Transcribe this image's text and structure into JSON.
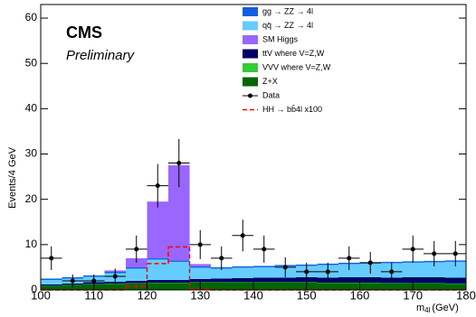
{
  "chart_data": {
    "type": "stacked_histogram",
    "cms_label": "CMS",
    "status_label": "Preliminary",
    "y_label": "Events/4 GeV",
    "x_label_main": "m",
    "x_label_sub": "4l",
    "x_label_unit": "(GeV)",
    "bins": [
      100,
      104,
      108,
      112,
      116,
      120,
      124,
      128,
      132,
      136,
      140,
      144,
      148,
      152,
      156,
      160,
      164,
      168,
      172,
      176,
      180
    ],
    "xlim": [
      100,
      180
    ],
    "ylim": [
      0,
      63
    ],
    "xticks": [
      100,
      110,
      120,
      130,
      140,
      150,
      160,
      170,
      180
    ],
    "yticks": [
      0,
      10,
      20,
      30,
      40,
      50,
      60
    ],
    "series": [
      {
        "name": "Z+X",
        "color": "#006600",
        "values": [
          0.8,
          1.0,
          1.2,
          1.3,
          1.4,
          1.5,
          1.5,
          1.6,
          1.6,
          1.6,
          1.6,
          1.6,
          1.6,
          1.5,
          1.5,
          1.5,
          1.4,
          1.4,
          1.4,
          1.3
        ]
      },
      {
        "name": "VVV where V=Z,W",
        "color": "#33cc33",
        "values": [
          0.1,
          0.1,
          0.1,
          0.1,
          0.1,
          0.1,
          0.1,
          0.1,
          0.1,
          0.1,
          0.1,
          0.1,
          0.1,
          0.1,
          0.1,
          0.1,
          0.1,
          0.1,
          0.1,
          0.1
        ]
      },
      {
        "name": "ttV where V=Z,W",
        "color": "#000066",
        "values": [
          0.3,
          0.3,
          0.4,
          0.4,
          0.5,
          0.6,
          0.6,
          0.7,
          0.8,
          0.9,
          1.0,
          1.0,
          1.1,
          1.1,
          1.2,
          1.2,
          1.2,
          1.3,
          1.3,
          1.3
        ]
      },
      {
        "name": "qq̄ → ZZ → 4l",
        "color": "#66ccff",
        "values": [
          1.0,
          1.1,
          1.2,
          1.9,
          2.7,
          4.5,
          4.0,
          2.5,
          2.2,
          2.3,
          2.3,
          2.5,
          2.5,
          2.8,
          2.9,
          3.0,
          3.2,
          3.2,
          3.3,
          3.5
        ]
      },
      {
        "name": "gg → ZZ → 4l",
        "color": "#1060e0",
        "values": [
          0.3,
          0.3,
          0.3,
          0.3,
          0.3,
          0.3,
          0.3,
          0.3,
          0.3,
          0.3,
          0.3,
          0.3,
          0.3,
          0.3,
          0.3,
          0.3,
          0.3,
          0.3,
          0.3,
          0.3
        ]
      },
      {
        "name": "SM Higgs",
        "color": "#9966ff",
        "values": [
          0,
          0,
          0,
          0.3,
          2.0,
          12.5,
          21.0,
          0.5,
          0,
          0,
          0,
          0,
          0,
          0,
          0,
          0,
          0,
          0,
          0,
          0
        ]
      }
    ],
    "legend_order": [
      4,
      3,
      5,
      2,
      1,
      0
    ],
    "data": {
      "name": "Data",
      "color": "#000000",
      "values": [
        7,
        2,
        2,
        3,
        9,
        23,
        28,
        10,
        7,
        12,
        9,
        5,
        4,
        4,
        7,
        6,
        4,
        9,
        8,
        8
      ],
      "errors": [
        2.6,
        1.4,
        1.4,
        1.7,
        3.0,
        4.8,
        5.3,
        3.2,
        2.6,
        3.5,
        3.0,
        2.2,
        2.0,
        2.0,
        2.6,
        2.4,
        2.0,
        3.0,
        2.8,
        2.8
      ]
    },
    "signal": {
      "name": "HH → bb̄4l x100",
      "color": "#ff0000",
      "values": [
        0,
        0,
        0,
        0,
        0.8,
        5.8,
        9.5,
        0.2,
        0,
        0,
        0,
        0,
        0,
        0,
        0,
        0,
        0,
        0,
        0,
        0
      ]
    }
  }
}
